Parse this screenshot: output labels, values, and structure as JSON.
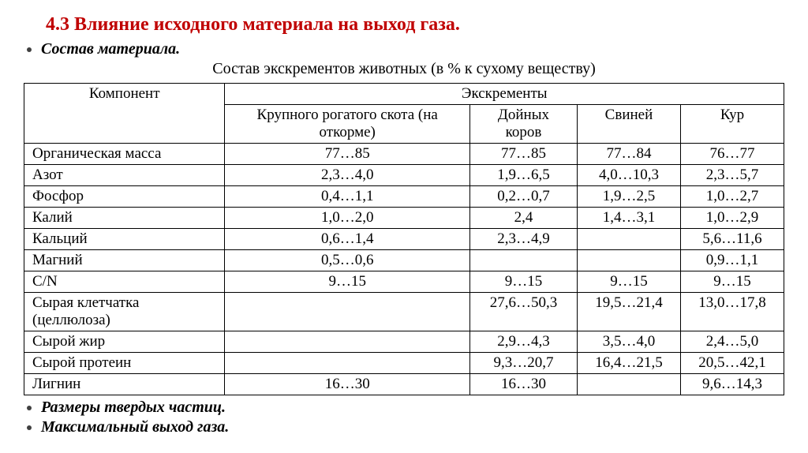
{
  "heading": "4.3 Влияние исходного материала на выход газа.",
  "bullets": {
    "b1": "Состав материала.",
    "b2": "Размеры твердых частиц.",
    "b3": "Максимальный выход газа."
  },
  "table": {
    "caption": "Состав экскрементов животных (в % к сухому веществу)",
    "header": {
      "component": "Компонент",
      "group": "Экскременты",
      "c1": "Крупного рогатого скота (на откорме)",
      "c2": "Дойных коров",
      "c3": "Свиней",
      "c4": "Кур"
    },
    "rows": [
      {
        "label": "Органическая масса",
        "v1": "77…85",
        "v2": "77…85",
        "v3": "77…84",
        "v4": "76…77"
      },
      {
        "label": "Азот",
        "v1": "2,3…4,0",
        "v2": "1,9…6,5",
        "v3": "4,0…10,3",
        "v4": "2,3…5,7"
      },
      {
        "label": "Фосфор",
        "v1": "0,4…1,1",
        "v2": "0,2…0,7",
        "v3": "1,9…2,5",
        "v4": "1,0…2,7"
      },
      {
        "label": "Калий",
        "v1": "1,0…2,0",
        "v2": "2,4",
        "v3": "1,4…3,1",
        "v4": "1,0…2,9"
      },
      {
        "label": "Кальций",
        "v1": "0,6…1,4",
        "v2": "2,3…4,9",
        "v3": "",
        "v4": "5,6…11,6"
      },
      {
        "label": "Магний",
        "v1": "0,5…0,6",
        "v2": "",
        "v3": "",
        "v4": "0,9…1,1"
      },
      {
        "label": "C/N",
        "v1": "9…15",
        "v2": "9…15",
        "v3": "9…15",
        "v4": "9…15"
      },
      {
        "label": "Сырая клетчатка (целлюлоза)",
        "v1": "",
        "v2": "27,6…50,3",
        "v3": "19,5…21,4",
        "v4": "13,0…17,8"
      },
      {
        "label": "Сырой жир",
        "v1": "",
        "v2": "2,9…4,3",
        "v3": "3,5…4,0",
        "v4": "2,4…5,0"
      },
      {
        "label": "Сырой протеин",
        "v1": "",
        "v2": "9,3…20,7",
        "v3": "16,4…21,5",
        "v4": "20,5…42,1"
      },
      {
        "label": "Лигнин",
        "v1": "16…30",
        "v2": "16…30",
        "v3": "",
        "v4": "9,6…14,3"
      }
    ],
    "style": {
      "border_color": "#000000",
      "background": "#ffffff",
      "font_size_pt": 14,
      "cell_align_values": "center",
      "cell_align_labels": "left"
    }
  },
  "colors": {
    "heading": "#c00000",
    "text": "#000000",
    "bullet_marker": "#404040",
    "background": "#ffffff"
  },
  "typography": {
    "heading_size_pt": 18,
    "heading_weight": "bold",
    "bullet_size_pt": 15,
    "bullet_style": "italic-bold",
    "body_family": "Times New Roman"
  }
}
